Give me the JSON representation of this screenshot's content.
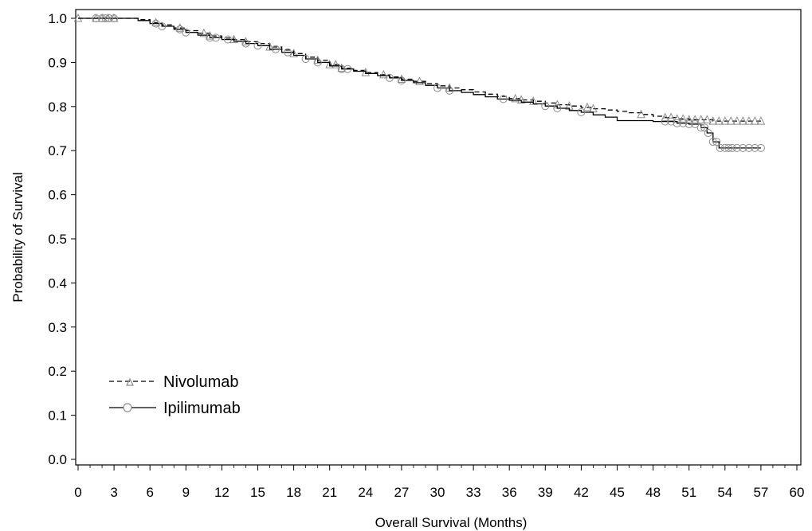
{
  "chart_data": {
    "type": "line",
    "title": "",
    "xlabel": "Overall Survival (Months)",
    "ylabel": "Probability of Survival",
    "xlim": [
      0,
      60
    ],
    "ylim": [
      0,
      1
    ],
    "x_ticks": [
      "0",
      "3",
      "6",
      "9",
      "12",
      "15",
      "18",
      "21",
      "24",
      "27",
      "30",
      "33",
      "36",
      "39",
      "42",
      "45",
      "48",
      "51",
      "54",
      "57",
      "60"
    ],
    "y_ticks": [
      "0.0",
      "0.1",
      "0.2",
      "0.3",
      "0.4",
      "0.5",
      "0.6",
      "0.7",
      "0.8",
      "0.9",
      "1.0"
    ],
    "grid": false,
    "legend_position": "bottom-left",
    "series": [
      {
        "name": "Nivolumab",
        "line_style": "dashed",
        "marker": "triangle",
        "color": "#000000",
        "marker_color": "#8c8c8c",
        "points": [
          [
            0,
            1.0
          ],
          [
            3,
            1.0
          ],
          [
            5,
            0.997
          ],
          [
            6,
            0.99
          ],
          [
            7,
            0.985
          ],
          [
            8,
            0.978
          ],
          [
            9,
            0.972
          ],
          [
            10,
            0.966
          ],
          [
            11,
            0.96
          ],
          [
            12,
            0.955
          ],
          [
            13,
            0.952
          ],
          [
            14,
            0.947
          ],
          [
            15,
            0.943
          ],
          [
            16,
            0.935
          ],
          [
            17,
            0.928
          ],
          [
            18,
            0.92
          ],
          [
            19,
            0.912
          ],
          [
            20,
            0.905
          ],
          [
            21,
            0.895
          ],
          [
            22,
            0.887
          ],
          [
            23,
            0.882
          ],
          [
            24,
            0.877
          ],
          [
            25,
            0.872
          ],
          [
            26,
            0.867
          ],
          [
            27,
            0.862
          ],
          [
            28,
            0.857
          ],
          [
            29,
            0.852
          ],
          [
            30,
            0.847
          ],
          [
            31,
            0.842
          ],
          [
            32,
            0.838
          ],
          [
            33,
            0.833
          ],
          [
            34,
            0.828
          ],
          [
            35,
            0.823
          ],
          [
            36,
            0.818
          ],
          [
            37,
            0.815
          ],
          [
            38,
            0.812
          ],
          [
            39,
            0.808
          ],
          [
            40,
            0.804
          ],
          [
            41,
            0.801
          ],
          [
            42,
            0.798
          ],
          [
            43,
            0.795
          ],
          [
            44,
            0.792
          ],
          [
            45,
            0.789
          ],
          [
            46,
            0.786
          ],
          [
            47,
            0.782
          ],
          [
            48,
            0.778
          ],
          [
            49,
            0.775
          ],
          [
            50,
            0.772
          ],
          [
            51,
            0.77
          ],
          [
            53,
            0.767
          ],
          [
            57,
            0.767
          ]
        ],
        "censor_times": [
          0,
          1.5,
          2,
          2.5,
          3,
          6.5,
          8.5,
          10.5,
          11,
          13,
          14,
          16,
          18,
          20,
          21,
          21.5,
          22,
          24,
          25.5,
          27,
          28.5,
          31,
          36.5,
          37,
          38,
          40,
          41,
          42.5,
          43,
          47,
          49,
          49.5,
          50,
          50.5,
          51,
          51.5,
          52,
          52.5,
          53,
          53.5,
          54,
          54.5,
          55,
          55.5,
          56,
          56.5,
          57
        ]
      },
      {
        "name": "Ipilimumab",
        "line_style": "solid",
        "marker": "circle",
        "color": "#000000",
        "marker_color": "#8c8c8c",
        "points": [
          [
            0,
            1.0
          ],
          [
            3,
            1.0
          ],
          [
            5,
            0.995
          ],
          [
            6,
            0.988
          ],
          [
            7,
            0.982
          ],
          [
            8,
            0.975
          ],
          [
            9,
            0.968
          ],
          [
            10,
            0.962
          ],
          [
            11,
            0.956
          ],
          [
            12,
            0.952
          ],
          [
            13,
            0.948
          ],
          [
            14,
            0.943
          ],
          [
            15,
            0.938
          ],
          [
            16,
            0.93
          ],
          [
            17,
            0.923
          ],
          [
            18,
            0.916
          ],
          [
            19,
            0.908
          ],
          [
            20,
            0.9
          ],
          [
            21,
            0.892
          ],
          [
            22,
            0.885
          ],
          [
            23,
            0.88
          ],
          [
            24,
            0.875
          ],
          [
            25,
            0.87
          ],
          [
            26,
            0.865
          ],
          [
            27,
            0.859
          ],
          [
            28,
            0.854
          ],
          [
            29,
            0.848
          ],
          [
            30,
            0.842
          ],
          [
            31,
            0.836
          ],
          [
            32,
            0.832
          ],
          [
            33,
            0.827
          ],
          [
            34,
            0.822
          ],
          [
            35,
            0.817
          ],
          [
            36,
            0.814
          ],
          [
            37,
            0.81
          ],
          [
            38,
            0.806
          ],
          [
            39,
            0.801
          ],
          [
            40,
            0.796
          ],
          [
            41,
            0.791
          ],
          [
            42,
            0.787
          ],
          [
            43,
            0.781
          ],
          [
            44,
            0.776
          ],
          [
            45,
            0.768
          ],
          [
            48,
            0.766
          ],
          [
            50,
            0.762
          ],
          [
            51,
            0.76
          ],
          [
            52,
            0.752
          ],
          [
            52.5,
            0.74
          ],
          [
            53,
            0.72
          ],
          [
            53.5,
            0.706
          ],
          [
            57,
            0.706
          ]
        ],
        "censor_times": [
          1.5,
          2,
          2.3,
          2.6,
          3,
          6.5,
          7,
          8.5,
          9,
          11,
          11.5,
          12.5,
          14,
          15,
          16.5,
          17.5,
          19,
          20,
          22,
          22.5,
          26,
          27,
          30,
          31,
          35.5,
          39,
          40,
          42,
          49,
          49.5,
          50,
          50.5,
          51,
          51.5,
          52,
          52.3,
          52.6,
          53,
          53.3,
          53.6,
          54,
          54.3,
          54.6,
          55,
          55.5,
          56,
          56.5,
          57
        ]
      }
    ]
  }
}
